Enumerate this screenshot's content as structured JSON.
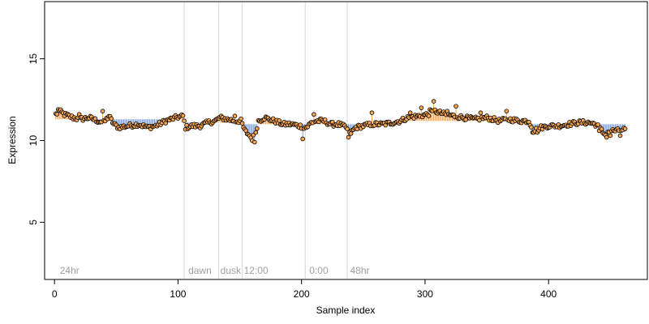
{
  "chart_data": {
    "type": "scatter",
    "title": "",
    "xlabel": "Sample index",
    "ylabel": "Expression",
    "xlim": [
      -8,
      480
    ],
    "ylim": [
      1.5,
      18.5
    ],
    "xticks": [
      0,
      100,
      200,
      300,
      400
    ],
    "yticks": [
      5,
      10,
      15
    ],
    "grid": false,
    "legend": "none",
    "colors": {
      "point_fill": "#f5a550",
      "point_stroke": "#000000",
      "above_bar": "#f5a550",
      "below_bar": "#7a9fd8",
      "separator": "#d8d8d8",
      "phase_label": "#a0a0a0"
    },
    "baseline_segments": [
      {
        "from": 1,
        "to": 48,
        "y": 11.3
      },
      {
        "from": 49,
        "to": 105,
        "y": 11.3
      },
      {
        "from": 106,
        "to": 134,
        "y": 11.1
      },
      {
        "from": 135,
        "to": 152,
        "y": 11.1
      },
      {
        "from": 153,
        "to": 203,
        "y": 11.0
      },
      {
        "from": 204,
        "to": 237,
        "y": 11.0
      },
      {
        "from": 238,
        "to": 280,
        "y": 11.0
      },
      {
        "from": 281,
        "to": 385,
        "y": 11.2
      },
      {
        "from": 386,
        "to": 440,
        "y": 11.0
      },
      {
        "from": 441,
        "to": 462,
        "y": 11.0
      }
    ],
    "separators": [
      105,
      133,
      152,
      203,
      237
    ],
    "phase_labels": [
      {
        "x": 3,
        "text": "24hr"
      },
      {
        "x": 107,
        "text": "dawn"
      },
      {
        "x": 133,
        "text": "dusk"
      },
      {
        "x": 152,
        "text": "12:00"
      },
      {
        "x": 205,
        "text": "0:00"
      },
      {
        "x": 238,
        "text": "48hr"
      }
    ],
    "anchors": [
      [
        1,
        11.6
      ],
      [
        4,
        11.8
      ],
      [
        8,
        11.6
      ],
      [
        15,
        11.4
      ],
      [
        20,
        11.3
      ],
      [
        28,
        11.4
      ],
      [
        35,
        11.2
      ],
      [
        40,
        11.1
      ],
      [
        44,
        11.5
      ],
      [
        48,
        11.0
      ],
      [
        52,
        10.8
      ],
      [
        60,
        10.9
      ],
      [
        68,
        11.0
      ],
      [
        75,
        10.8
      ],
      [
        82,
        10.9
      ],
      [
        90,
        11.2
      ],
      [
        98,
        11.4
      ],
      [
        104,
        11.5
      ],
      [
        106,
        10.8
      ],
      [
        112,
        10.9
      ],
      [
        118,
        10.9
      ],
      [
        124,
        11.1
      ],
      [
        130,
        11.2
      ],
      [
        134,
        11.4
      ],
      [
        140,
        11.3
      ],
      [
        146,
        11.2
      ],
      [
        151,
        11.2
      ],
      [
        154,
        10.6
      ],
      [
        158,
        10.3
      ],
      [
        162,
        10.2
      ],
      [
        165,
        11.2
      ],
      [
        170,
        11.4
      ],
      [
        178,
        11.2
      ],
      [
        185,
        11.0
      ],
      [
        192,
        11.0
      ],
      [
        198,
        10.9
      ],
      [
        204,
        10.8
      ],
      [
        208,
        11.1
      ],
      [
        212,
        11.2
      ],
      [
        218,
        11.2
      ],
      [
        224,
        11.0
      ],
      [
        230,
        11.0
      ],
      [
        236,
        10.8
      ],
      [
        239,
        10.4
      ],
      [
        244,
        10.8
      ],
      [
        250,
        10.9
      ],
      [
        258,
        11.0
      ],
      [
        266,
        11.0
      ],
      [
        274,
        11.1
      ],
      [
        280,
        11.2
      ],
      [
        286,
        11.4
      ],
      [
        294,
        11.5
      ],
      [
        302,
        11.6
      ],
      [
        308,
        11.8
      ],
      [
        316,
        11.6
      ],
      [
        324,
        11.5
      ],
      [
        332,
        11.4
      ],
      [
        340,
        11.3
      ],
      [
        350,
        11.4
      ],
      [
        360,
        11.2
      ],
      [
        368,
        11.3
      ],
      [
        376,
        11.2
      ],
      [
        384,
        11.2
      ],
      [
        388,
        10.6
      ],
      [
        394,
        10.8
      ],
      [
        400,
        10.9
      ],
      [
        408,
        10.9
      ],
      [
        416,
        11.0
      ],
      [
        424,
        11.1
      ],
      [
        432,
        11.1
      ],
      [
        438,
        11.0
      ],
      [
        441,
        10.8
      ],
      [
        445,
        10.4
      ],
      [
        450,
        10.6
      ],
      [
        456,
        10.6
      ],
      [
        462,
        10.7
      ]
    ],
    "highlights": [
      [
        3,
        11.9
      ],
      [
        20,
        11.6
      ],
      [
        39,
        11.8
      ],
      [
        146,
        11.5
      ],
      [
        160,
        10.0
      ],
      [
        162,
        9.9
      ],
      [
        201,
        10.1
      ],
      [
        210,
        11.6
      ],
      [
        238,
        10.2
      ],
      [
        257,
        11.7
      ],
      [
        288,
        11.7
      ],
      [
        297,
        12.0
      ],
      [
        304,
        11.9
      ],
      [
        307,
        12.4
      ],
      [
        318,
        11.8
      ],
      [
        325,
        12.1
      ],
      [
        345,
        11.7
      ],
      [
        366,
        11.8
      ],
      [
        387,
        10.5
      ],
      [
        391,
        10.5
      ],
      [
        441,
        10.6
      ],
      [
        447,
        10.2
      ],
      [
        450,
        10.3
      ],
      [
        458,
        10.3
      ]
    ],
    "n_points": 462,
    "jitter": 0.14
  }
}
